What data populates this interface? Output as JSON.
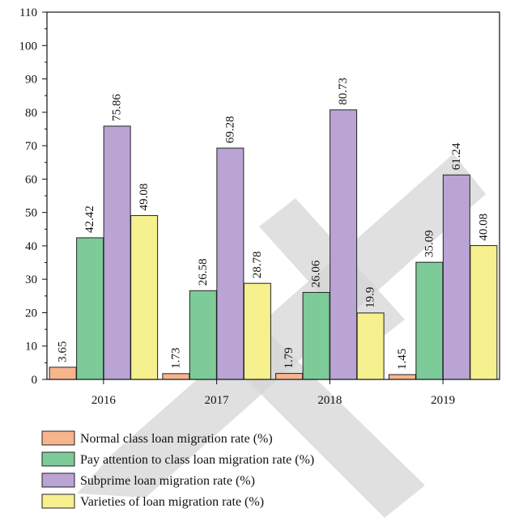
{
  "chart_data": {
    "type": "bar",
    "categories": [
      "2016",
      "2017",
      "2018",
      "2019"
    ],
    "series": [
      {
        "name": "Normal class loan migration rate (%)",
        "values": [
          3.65,
          1.73,
          1.79,
          1.45
        ],
        "color": "#f7b58d",
        "labels": [
          "3.65",
          "1.73",
          "1.79",
          "1.45"
        ]
      },
      {
        "name": "Pay attention to class loan migration rate (%)",
        "values": [
          42.42,
          26.58,
          26.06,
          35.09
        ],
        "color": "#7ccb98",
        "labels": [
          "42.42",
          "26.58",
          "26.06",
          "35.09"
        ]
      },
      {
        "name": "Subprime loan migration rate (%)",
        "values": [
          75.86,
          69.28,
          80.73,
          61.24
        ],
        "color": "#b9a4d4",
        "labels": [
          "75.86",
          "69.28",
          "80.73",
          "61.24"
        ]
      },
      {
        "name": "Varieties of loan migration rate (%)",
        "values": [
          49.08,
          28.78,
          19.9,
          40.08
        ],
        "color": "#f6f08e",
        "labels": [
          "49.08",
          "28.78",
          "19.9",
          "40.08"
        ]
      }
    ],
    "yticks": [
      "0",
      "10",
      "20",
      "30",
      "40",
      "50",
      "60",
      "70",
      "80",
      "90",
      "100",
      "110"
    ],
    "ylim": [
      0,
      110
    ],
    "grid": false,
    "legend_position": "bottom-left"
  }
}
